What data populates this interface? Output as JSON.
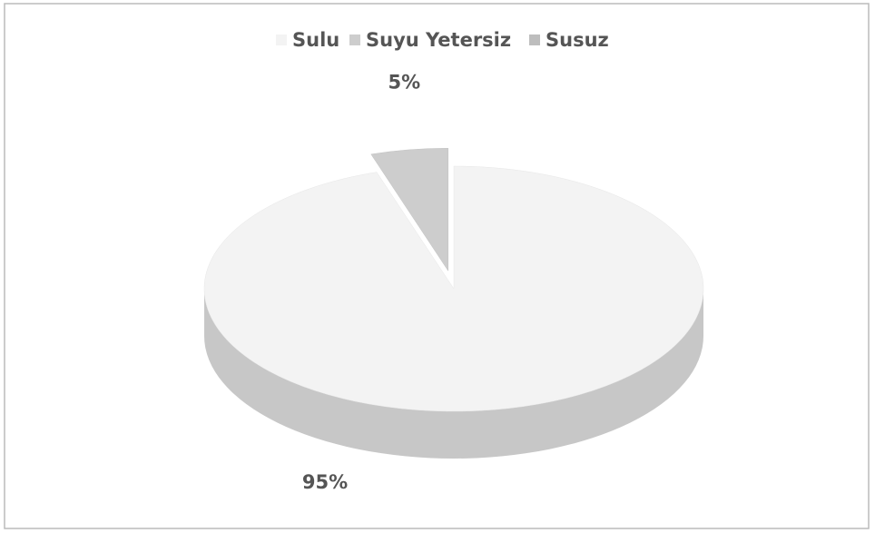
{
  "chart_data": {
    "type": "pie3d",
    "categories": [
      "Sulu",
      "Suyu Yetersiz",
      "Susuz"
    ],
    "values": [
      95,
      5,
      0
    ],
    "value_labels": [
      "95%",
      "5%",
      null
    ],
    "colors": [
      "#f3f3f3",
      "#cdcdcd",
      "#bdbdbd"
    ],
    "legend": "top"
  }
}
